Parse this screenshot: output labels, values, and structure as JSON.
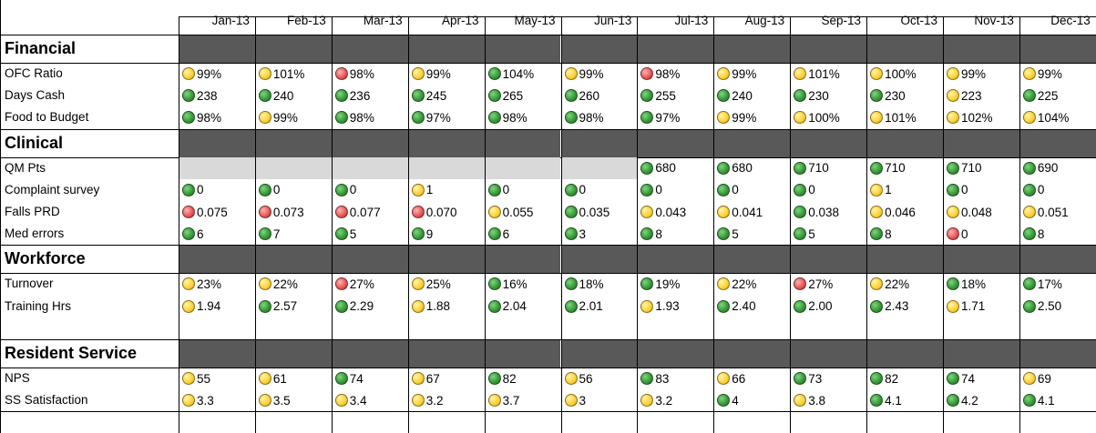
{
  "months": [
    "Jan-13",
    "Feb-13",
    "Mar-13",
    "Apr-13",
    "May-13",
    "Jun-13",
    "Jul-13",
    "Aug-13",
    "Sep-13",
    "Oct-13",
    "Nov-13",
    "Dec-13"
  ],
  "sections": [
    {
      "title": "Financial",
      "rows": [
        {
          "label": "OFC Ratio",
          "values": [
            [
              "yellow",
              "99%"
            ],
            [
              "yellow",
              "101%"
            ],
            [
              "red",
              "98%"
            ],
            [
              "yellow",
              "99%"
            ],
            [
              "green",
              "104%"
            ],
            [
              "yellow",
              "99%"
            ],
            [
              "red",
              "98%"
            ],
            [
              "yellow",
              "99%"
            ],
            [
              "yellow",
              "101%"
            ],
            [
              "yellow",
              "100%"
            ],
            [
              "yellow",
              "99%"
            ],
            [
              "yellow",
              "99%"
            ]
          ]
        },
        {
          "label": "Days Cash",
          "values": [
            [
              "green",
              "238"
            ],
            [
              "green",
              "240"
            ],
            [
              "green",
              "236"
            ],
            [
              "green",
              "245"
            ],
            [
              "green",
              "265"
            ],
            [
              "green",
              "260"
            ],
            [
              "green",
              "255"
            ],
            [
              "green",
              "240"
            ],
            [
              "green",
              "230"
            ],
            [
              "green",
              "230"
            ],
            [
              "yellow",
              "223"
            ],
            [
              "green",
              "225"
            ]
          ]
        },
        {
          "label": "Food to Budget",
          "values": [
            [
              "green",
              "98%"
            ],
            [
              "yellow",
              "99%"
            ],
            [
              "green",
              "98%"
            ],
            [
              "green",
              "97%"
            ],
            [
              "green",
              "98%"
            ],
            [
              "green",
              "98%"
            ],
            [
              "green",
              "97%"
            ],
            [
              "yellow",
              "99%"
            ],
            [
              "yellow",
              "100%"
            ],
            [
              "yellow",
              "101%"
            ],
            [
              "yellow",
              "102%"
            ],
            [
              "yellow",
              "104%"
            ]
          ]
        }
      ]
    },
    {
      "title": "Clinical",
      "rows": [
        {
          "label": "QM Pts",
          "values": [
            null,
            null,
            null,
            null,
            null,
            null,
            [
              "green",
              "680"
            ],
            [
              "green",
              "680"
            ],
            [
              "green",
              "710"
            ],
            [
              "green",
              "710"
            ],
            [
              "green",
              "710"
            ],
            [
              "green",
              "690"
            ]
          ]
        },
        {
          "label": "Complaint survey",
          "values": [
            [
              "green",
              "0"
            ],
            [
              "green",
              "0"
            ],
            [
              "green",
              "0"
            ],
            [
              "yellow",
              "1"
            ],
            [
              "green",
              "0"
            ],
            [
              "green",
              "0"
            ],
            [
              "green",
              "0"
            ],
            [
              "green",
              "0"
            ],
            [
              "green",
              "0"
            ],
            [
              "yellow",
              "1"
            ],
            [
              "green",
              "0"
            ],
            [
              "green",
              "0"
            ]
          ]
        },
        {
          "label": "Falls PRD",
          "values": [
            [
              "red",
              "0.075"
            ],
            [
              "red",
              "0.073"
            ],
            [
              "red",
              "0.077"
            ],
            [
              "red",
              "0.070"
            ],
            [
              "yellow",
              "0.055"
            ],
            [
              "green",
              "0.035"
            ],
            [
              "yellow",
              "0.043"
            ],
            [
              "yellow",
              "0.041"
            ],
            [
              "green",
              "0.038"
            ],
            [
              "yellow",
              "0.046"
            ],
            [
              "yellow",
              "0.048"
            ],
            [
              "yellow",
              "0.051"
            ]
          ]
        },
        {
          "label": "Med errors",
          "values": [
            [
              "green",
              "6"
            ],
            [
              "green",
              "7"
            ],
            [
              "green",
              "5"
            ],
            [
              "green",
              "9"
            ],
            [
              "green",
              "6"
            ],
            [
              "green",
              "3"
            ],
            [
              "green",
              "8"
            ],
            [
              "green",
              "5"
            ],
            [
              "green",
              "5"
            ],
            [
              "green",
              "8"
            ],
            [
              "red",
              "0"
            ],
            [
              "green",
              "8"
            ]
          ]
        }
      ]
    },
    {
      "title": "Workforce",
      "rows": [
        {
          "label": "Turnover",
          "values": [
            [
              "yellow",
              "23%"
            ],
            [
              "yellow",
              "22%"
            ],
            [
              "red",
              "27%"
            ],
            [
              "yellow",
              "25%"
            ],
            [
              "green",
              "16%"
            ],
            [
              "green",
              "18%"
            ],
            [
              "green",
              "19%"
            ],
            [
              "yellow",
              "22%"
            ],
            [
              "red",
              "27%"
            ],
            [
              "yellow",
              "22%"
            ],
            [
              "green",
              "18%"
            ],
            [
              "green",
              "17%"
            ]
          ]
        },
        {
          "label": "Training Hrs",
          "values": [
            [
              "yellow",
              "1.94"
            ],
            [
              "green",
              "2.57"
            ],
            [
              "green",
              "2.29"
            ],
            [
              "yellow",
              "1.88"
            ],
            [
              "green",
              "2.04"
            ],
            [
              "green",
              "2.01"
            ],
            [
              "yellow",
              "1.93"
            ],
            [
              "green",
              "2.40"
            ],
            [
              "green",
              "2.00"
            ],
            [
              "green",
              "2.43"
            ],
            [
              "yellow",
              "1.71"
            ],
            [
              "green",
              "2.50"
            ]
          ]
        },
        {
          "label": "",
          "values": [
            null,
            null,
            null,
            null,
            null,
            null,
            null,
            null,
            null,
            null,
            null,
            null
          ],
          "blank": true
        }
      ]
    },
    {
      "title": "Resident Service",
      "rows": [
        {
          "label": "NPS",
          "values": [
            [
              "yellow",
              "55"
            ],
            [
              "yellow",
              "61"
            ],
            [
              "green",
              "74"
            ],
            [
              "yellow",
              "67"
            ],
            [
              "green",
              "82"
            ],
            [
              "yellow",
              "56"
            ],
            [
              "green",
              "83"
            ],
            [
              "yellow",
              "66"
            ],
            [
              "green",
              "73"
            ],
            [
              "green",
              "82"
            ],
            [
              "green",
              "74"
            ],
            [
              "yellow",
              "69"
            ]
          ]
        },
        {
          "label": "SS Satisfaction",
          "values": [
            [
              "yellow",
              "3.3"
            ],
            [
              "yellow",
              "3.5"
            ],
            [
              "yellow",
              "3.4"
            ],
            [
              "yellow",
              "3.2"
            ],
            [
              "yellow",
              "3.7"
            ],
            [
              "yellow",
              "3"
            ],
            [
              "yellow",
              "3.2"
            ],
            [
              "green",
              "4"
            ],
            [
              "yellow",
              "3.8"
            ],
            [
              "green",
              "4.1"
            ],
            [
              "green",
              "4.2"
            ],
            [
              "green",
              "4.1"
            ]
          ]
        }
      ]
    }
  ]
}
